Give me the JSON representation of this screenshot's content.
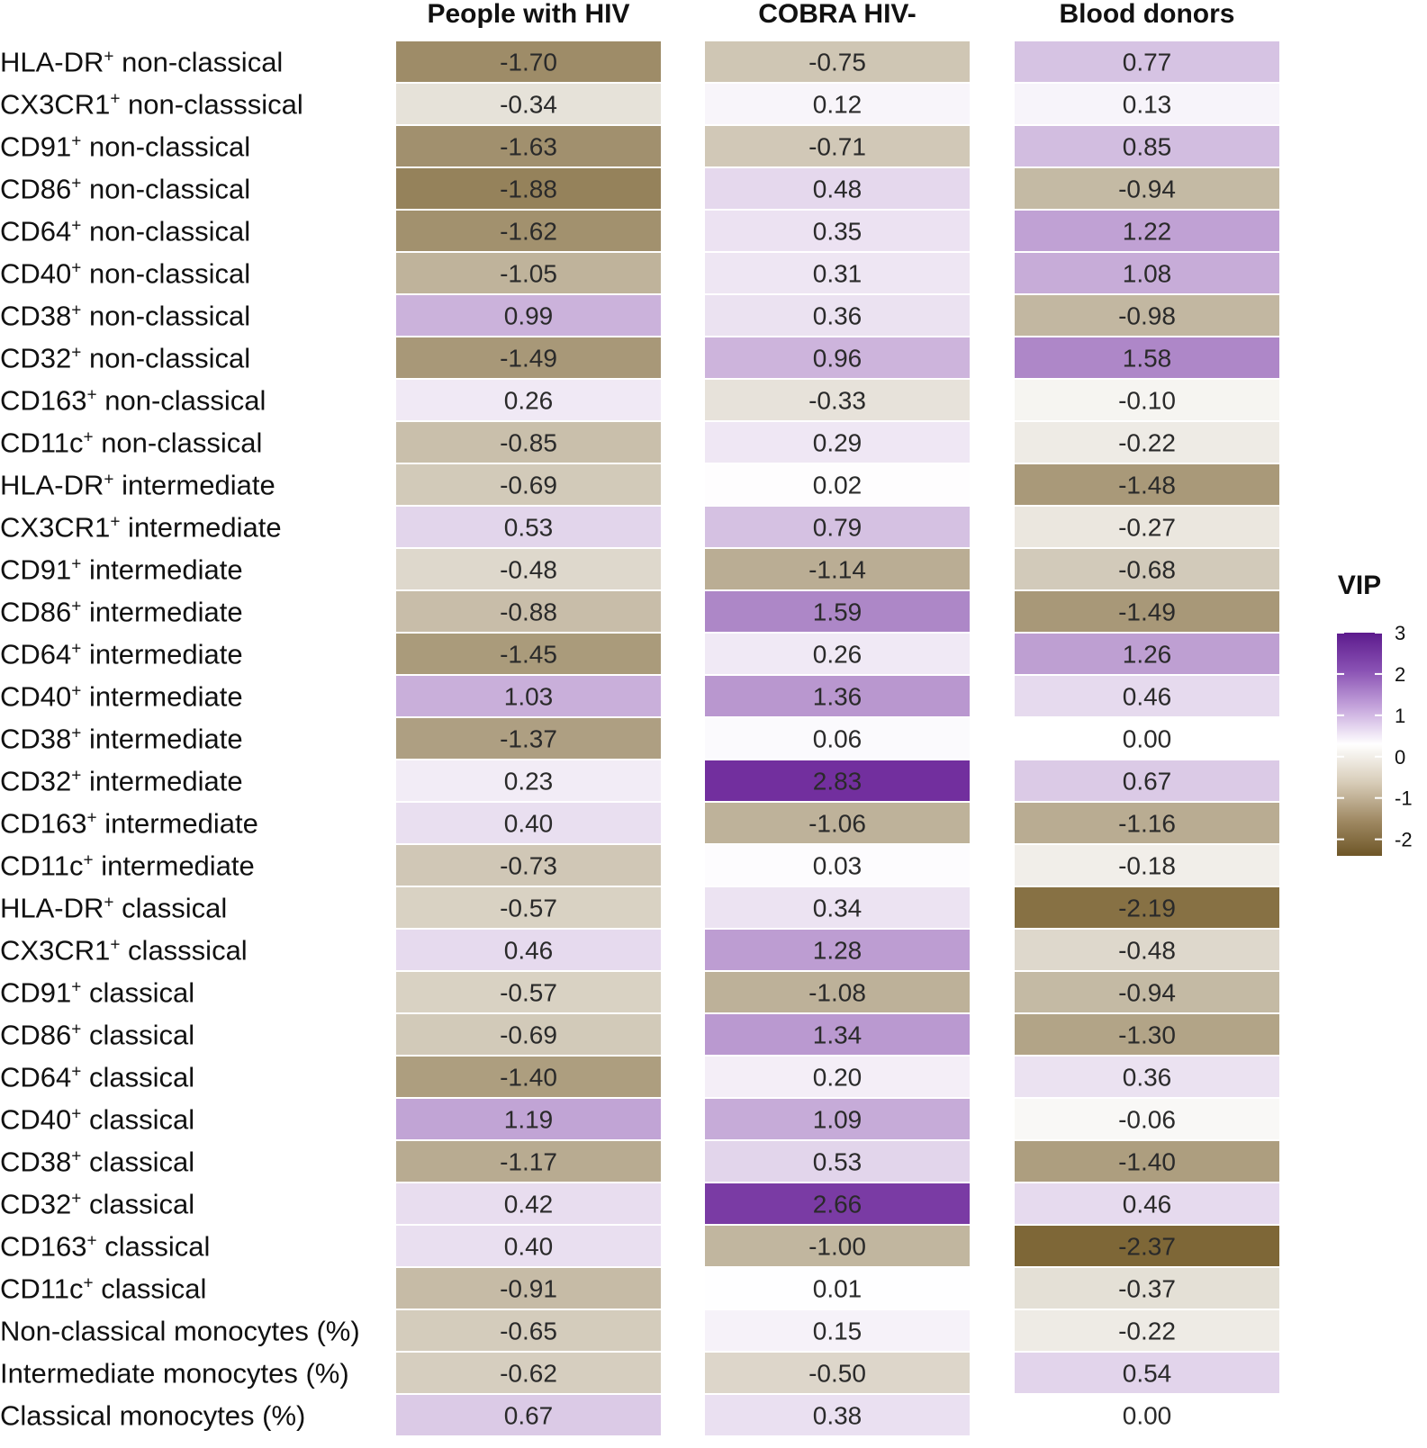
{
  "chart_data": {
    "type": "heatmap",
    "columns": [
      "People with HIV",
      "COBRA HIV-",
      "Blood donors"
    ],
    "rows": [
      {
        "label": "HLA-DR",
        "sup": "+",
        "suffix": " non-classical",
        "values": [
          -1.7,
          -0.75,
          0.77
        ]
      },
      {
        "label": "CX3CR1",
        "sup": "+",
        "suffix": " non-classsical",
        "values": [
          -0.34,
          0.12,
          0.13
        ]
      },
      {
        "label": "CD91",
        "sup": "+",
        "suffix": " non-classical",
        "values": [
          -1.63,
          -0.71,
          0.85
        ]
      },
      {
        "label": "CD86",
        "sup": "+",
        "suffix": " non-classical",
        "values": [
          -1.88,
          0.48,
          -0.94
        ]
      },
      {
        "label": "CD64",
        "sup": "+",
        "suffix": " non-classical",
        "values": [
          -1.62,
          0.35,
          1.22
        ]
      },
      {
        "label": "CD40",
        "sup": "+",
        "suffix": " non-classical",
        "values": [
          -1.05,
          0.31,
          1.08
        ]
      },
      {
        "label": "CD38",
        "sup": "+",
        "suffix": " non-classical",
        "values": [
          0.99,
          0.36,
          -0.98
        ]
      },
      {
        "label": "CD32",
        "sup": "+",
        "suffix": " non-classical",
        "values": [
          -1.49,
          0.96,
          1.58
        ]
      },
      {
        "label": "CD163",
        "sup": "+",
        "suffix": " non-classical",
        "values": [
          0.26,
          -0.33,
          -0.1
        ]
      },
      {
        "label": "CD11c",
        "sup": "+",
        "suffix": " non-classical",
        "values": [
          -0.85,
          0.29,
          -0.22
        ]
      },
      {
        "label": "HLA-DR",
        "sup": "+",
        "suffix": " intermediate",
        "values": [
          -0.69,
          0.02,
          -1.48
        ]
      },
      {
        "label": "CX3CR1",
        "sup": "+",
        "suffix": " intermediate",
        "values": [
          0.53,
          0.79,
          -0.27
        ]
      },
      {
        "label": "CD91",
        "sup": "+",
        "suffix": " intermediate",
        "values": [
          -0.48,
          -1.14,
          -0.68
        ]
      },
      {
        "label": "CD86",
        "sup": "+",
        "suffix": " intermediate",
        "values": [
          -0.88,
          1.59,
          -1.49
        ]
      },
      {
        "label": "CD64",
        "sup": "+",
        "suffix": " intermediate",
        "values": [
          -1.45,
          0.26,
          1.26
        ]
      },
      {
        "label": "CD40",
        "sup": "+",
        "suffix": " intermediate",
        "values": [
          1.03,
          1.36,
          0.46
        ]
      },
      {
        "label": "CD38",
        "sup": "+",
        "suffix": " intermediate",
        "values": [
          -1.37,
          0.06,
          0.0
        ]
      },
      {
        "label": "CD32",
        "sup": "+",
        "suffix": " intermediate",
        "values": [
          0.23,
          2.83,
          0.67
        ]
      },
      {
        "label": "CD163",
        "sup": "+",
        "suffix": " intermediate",
        "values": [
          0.4,
          -1.06,
          -1.16
        ]
      },
      {
        "label": "CD11c",
        "sup": "+",
        "suffix": " intermediate",
        "values": [
          -0.73,
          0.03,
          -0.18
        ]
      },
      {
        "label": "HLA-DR",
        "sup": "+",
        "suffix": " classical",
        "values": [
          -0.57,
          0.34,
          -2.19
        ]
      },
      {
        "label": "CX3CR1",
        "sup": "+",
        "suffix": " classsical",
        "values": [
          0.46,
          1.28,
          -0.48
        ]
      },
      {
        "label": "CD91",
        "sup": "+",
        "suffix": " classical",
        "values": [
          -0.57,
          -1.08,
          -0.94
        ]
      },
      {
        "label": "CD86",
        "sup": "+",
        "suffix": " classical",
        "values": [
          -0.69,
          1.34,
          -1.3
        ]
      },
      {
        "label": "CD64",
        "sup": "+",
        "suffix": " classical",
        "values": [
          -1.4,
          0.2,
          0.36
        ]
      },
      {
        "label": "CD40",
        "sup": "+",
        "suffix": " classical",
        "values": [
          1.19,
          1.09,
          -0.06
        ]
      },
      {
        "label": "CD38",
        "sup": "+",
        "suffix": " classical",
        "values": [
          -1.17,
          0.53,
          -1.4
        ]
      },
      {
        "label": "CD32",
        "sup": "+",
        "suffix": " classical",
        "values": [
          0.42,
          2.66,
          0.46
        ]
      },
      {
        "label": "CD163",
        "sup": "+",
        "suffix": " classical",
        "values": [
          0.4,
          -1.0,
          -2.37
        ]
      },
      {
        "label": "CD11c",
        "sup": "+",
        "suffix": " classical",
        "values": [
          -0.91,
          0.01,
          -0.37
        ]
      },
      {
        "label": "Non-classical monocytes (%)",
        "sup": "",
        "suffix": "",
        "values": [
          -0.65,
          0.15,
          -0.22
        ]
      },
      {
        "label": "Intermediate monocytes (%)",
        "sup": "",
        "suffix": "",
        "values": [
          -0.62,
          -0.5,
          0.54
        ]
      },
      {
        "label": "Classical monocytes (%)",
        "sup": "",
        "suffix": "",
        "values": [
          0.67,
          0.38,
          0.0
        ]
      }
    ],
    "value_format_decimals": 2,
    "legend": {
      "title": "VIP",
      "ticks": [
        3,
        2,
        1,
        0,
        -1,
        -2
      ],
      "range": [
        -2.4,
        3
      ],
      "placement": "right"
    },
    "colors": {
      "negative_max": "#7d6535",
      "zero": "#ffffff",
      "positive_max": "#6a2399",
      "text": "#2a2a2a"
    }
  }
}
